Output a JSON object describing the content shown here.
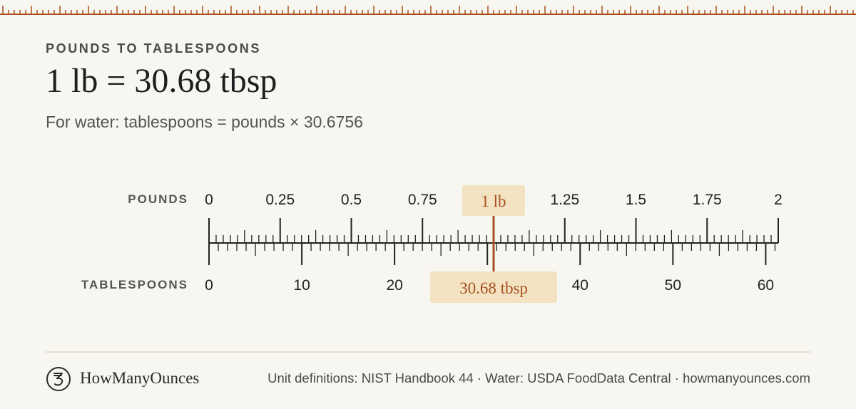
{
  "colors": {
    "background": "#f8f6f1",
    "accent": "#a8501e",
    "highlight_bg": "#f3e3c2",
    "ink": "#222222"
  },
  "header": {
    "eyebrow": "POUNDS TO TABLESPOONS",
    "headline": "1 lb = 30.68 tbsp",
    "formula": "For water: tablespoons = pounds × 30.6756"
  },
  "scale": {
    "top_label": "POUNDS",
    "bottom_label": "TABLESPOONS",
    "top_ticks": [
      "0",
      "0.25",
      "0.5",
      "0.75",
      "1",
      "1.25",
      "1.5",
      "1.75",
      "2"
    ],
    "bottom_ticks": [
      "0",
      "10",
      "20",
      "30",
      "40",
      "50",
      "60"
    ],
    "top_max": 2,
    "bottom_max": 61.3512,
    "marker_value": 1,
    "marker_top_label": "1 lb",
    "marker_bottom_label": "30.68 tbsp"
  },
  "footer": {
    "logo_icon": "ounce-symbol-icon",
    "brand": "HowManyOunces",
    "source": "Unit definitions: NIST Handbook 44 · Water: USDA FoodData Central · howmanyounces.com"
  }
}
